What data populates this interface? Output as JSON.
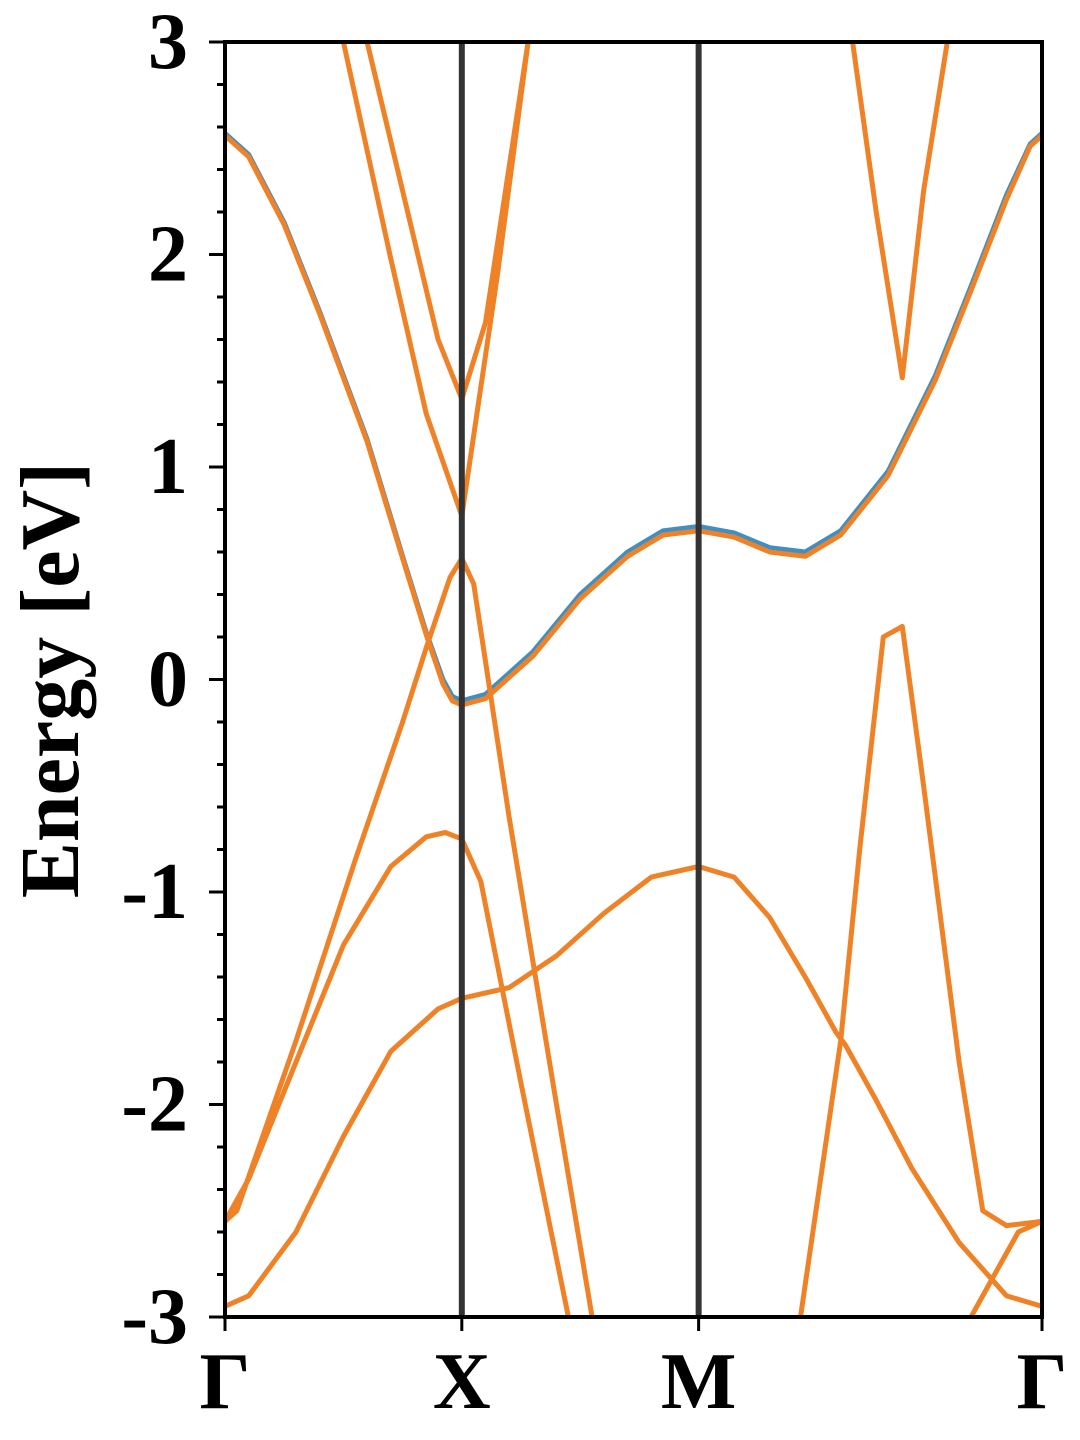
{
  "chart_data": {
    "type": "line",
    "title": "",
    "xlabel": "",
    "ylabel": "Energy [eV]",
    "ylim": [
      -3,
      3
    ],
    "y_ticks": [
      "-3",
      "-2",
      "-1",
      "0",
      "1",
      "2",
      "3"
    ],
    "y_tick_values": [
      -3,
      -2,
      -1,
      0,
      1,
      2,
      3
    ],
    "x_ticks": [
      "Γ",
      "X",
      "M",
      "Γ"
    ],
    "x_tick_values": [
      0,
      1,
      2,
      3.45
    ],
    "high_symmetry_lines": [
      1,
      2
    ],
    "grid": false,
    "legend": "none",
    "colors": {
      "series_a": "#3f8fc4",
      "series_b": "#ef8226",
      "symmetry_line": "#333333",
      "axes": "#000000"
    },
    "series": [
      {
        "color_key": "series_a",
        "bands": [
          [
            [
              0,
              2.57
            ],
            [
              0.1,
              2.47
            ],
            [
              0.25,
              2.15
            ],
            [
              0.4,
              1.73
            ],
            [
              0.6,
              1.13
            ],
            [
              0.75,
              0.58
            ],
            [
              0.85,
              0.22
            ],
            [
              0.92,
              0.0
            ],
            [
              0.96,
              -0.08
            ],
            [
              1.0,
              -0.1
            ],
            [
              1.1,
              -0.07
            ],
            [
              1.3,
              0.13
            ],
            [
              1.5,
              0.4
            ],
            [
              1.7,
              0.6
            ],
            [
              1.85,
              0.7
            ],
            [
              2.0,
              0.72
            ],
            [
              2.15,
              0.69
            ],
            [
              2.3,
              0.62
            ],
            [
              2.45,
              0.6
            ],
            [
              2.6,
              0.7
            ],
            [
              2.8,
              0.98
            ],
            [
              3.0,
              1.43
            ],
            [
              3.15,
              1.85
            ],
            [
              3.3,
              2.28
            ],
            [
              3.4,
              2.52
            ],
            [
              3.45,
              2.57
            ]
          ]
        ]
      },
      {
        "color_key": "series_b",
        "bands": [
          [
            [
              0,
              2.56
            ],
            [
              0.1,
              2.46
            ],
            [
              0.25,
              2.14
            ],
            [
              0.4,
              1.72
            ],
            [
              0.6,
              1.12
            ],
            [
              0.75,
              0.57
            ],
            [
              0.85,
              0.21
            ],
            [
              0.92,
              -0.02
            ],
            [
              0.96,
              -0.1
            ],
            [
              1.0,
              -0.12
            ],
            [
              1.1,
              -0.09
            ],
            [
              1.3,
              0.11
            ],
            [
              1.5,
              0.38
            ],
            [
              1.7,
              0.58
            ],
            [
              1.85,
              0.68
            ],
            [
              2.0,
              0.7
            ],
            [
              2.15,
              0.67
            ],
            [
              2.3,
              0.6
            ],
            [
              2.45,
              0.58
            ],
            [
              2.6,
              0.68
            ],
            [
              2.8,
              0.96
            ],
            [
              3.0,
              1.41
            ],
            [
              3.15,
              1.83
            ],
            [
              3.3,
              2.26
            ],
            [
              3.4,
              2.51
            ],
            [
              3.45,
              2.56
            ]
          ],
          [
            [
              0.5,
              3.0
            ],
            [
              0.7,
              1.98
            ],
            [
              0.85,
              1.25
            ],
            [
              1.0,
              0.77
            ],
            [
              1.15,
              1.9
            ],
            [
              1.28,
              3.0
            ]
          ],
          [
            [
              0.6,
              3.0
            ],
            [
              0.75,
              2.3
            ],
            [
              0.9,
              1.6
            ],
            [
              1.0,
              1.32
            ],
            [
              1.1,
              1.68
            ],
            [
              1.28,
              3.0
            ]
          ],
          [
            [
              0,
              -2.55
            ],
            [
              0.05,
              -2.5
            ],
            [
              0.3,
              -1.7
            ],
            [
              0.55,
              -0.85
            ],
            [
              0.75,
              -0.2
            ],
            [
              0.85,
              0.15
            ],
            [
              0.95,
              0.48
            ],
            [
              1.0,
              0.57
            ],
            [
              1.05,
              0.45
            ],
            [
              1.2,
              -0.65
            ],
            [
              1.4,
              -2.0
            ],
            [
              1.55,
              -3.0
            ]
          ],
          [
            [
              0,
              -2.95
            ],
            [
              0.1,
              -2.9
            ],
            [
              0.3,
              -2.6
            ],
            [
              0.5,
              -2.15
            ],
            [
              0.7,
              -1.75
            ],
            [
              0.9,
              -1.55
            ],
            [
              1.0,
              -1.5
            ],
            [
              1.2,
              -1.45
            ],
            [
              1.4,
              -1.3
            ],
            [
              1.6,
              -1.1
            ],
            [
              1.8,
              -0.93
            ],
            [
              2.0,
              -0.88
            ],
            [
              2.15,
              -0.93
            ],
            [
              2.3,
              -1.12
            ],
            [
              2.45,
              -1.4
            ],
            [
              2.58,
              -1.66
            ],
            [
              2.62,
              -1.72
            ],
            [
              2.75,
              -1.98
            ],
            [
              2.9,
              -2.3
            ],
            [
              3.1,
              -2.65
            ],
            [
              3.3,
              -2.9
            ],
            [
              3.45,
              -2.95
            ]
          ],
          [
            [
              0,
              -2.55
            ],
            [
              0.1,
              -2.35
            ],
            [
              0.3,
              -1.8
            ],
            [
              0.5,
              -1.25
            ],
            [
              0.7,
              -0.88
            ],
            [
              0.85,
              -0.74
            ],
            [
              0.93,
              -0.72
            ],
            [
              1.0,
              -0.75
            ],
            [
              1.08,
              -0.95
            ],
            [
              1.25,
              -1.9
            ],
            [
              1.45,
              -3.0
            ]
          ],
          [
            [
              2.43,
              -3.0
            ],
            [
              2.6,
              -1.7
            ],
            [
              2.68,
              -0.8
            ],
            [
              2.78,
              0.2
            ],
            [
              2.86,
              0.25
            ],
            [
              2.95,
              -0.5
            ],
            [
              3.1,
              -1.8
            ],
            [
              3.2,
              -2.5
            ],
            [
              3.3,
              -2.57
            ],
            [
              3.45,
              -2.55
            ]
          ],
          [
            [
              2.65,
              3.0
            ],
            [
              2.75,
              2.2
            ],
            [
              2.86,
              1.42
            ],
            [
              2.95,
              2.3
            ],
            [
              3.05,
              3.0
            ]
          ],
          [
            [
              3.15,
              -3.0
            ],
            [
              3.25,
              -2.8
            ],
            [
              3.35,
              -2.6
            ],
            [
              3.45,
              -2.55
            ]
          ]
        ]
      }
    ]
  }
}
